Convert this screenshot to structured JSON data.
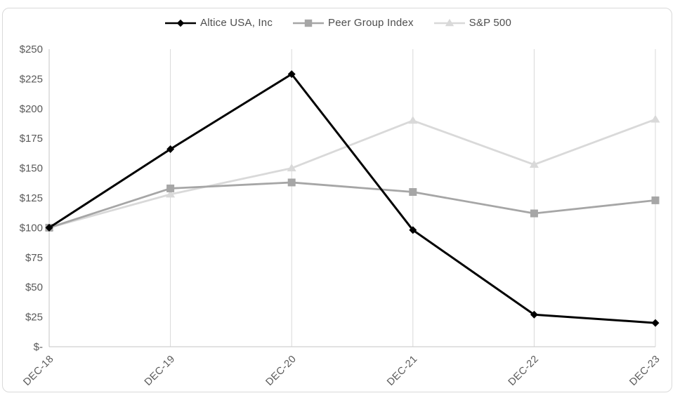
{
  "chart_data": {
    "type": "line",
    "title": "",
    "categories": [
      "DEC-18",
      "DEC-19",
      "DEC-20",
      "DEC-21",
      "DEC-22",
      "DEC-23"
    ],
    "series": [
      {
        "name": "Altice USA, Inc",
        "color": "#000000",
        "marker": "diamond",
        "line_width": 3.0,
        "values": [
          100,
          166,
          229,
          98,
          27,
          20
        ]
      },
      {
        "name": "Peer Group Index",
        "color": "#a6a6a6",
        "marker": "square",
        "line_width": 2.8,
        "values": [
          100,
          133,
          138,
          130,
          112,
          123
        ]
      },
      {
        "name": "S&P 500",
        "color": "#d9d9d9",
        "marker": "triangle",
        "line_width": 2.8,
        "values": [
          100,
          128,
          150,
          190,
          153,
          191
        ]
      }
    ],
    "y_tick_labels_top_to_bottom": [
      "$250",
      "$225",
      "$200",
      "$175",
      "$150",
      "$125",
      "$100",
      "$75",
      "$50",
      "$25",
      "$-"
    ],
    "ylim": [
      0,
      250
    ],
    "y_tick_step": 25,
    "grid": "vertical-only",
    "legend_position": "top-center",
    "colors": {
      "axis_text": "#595959",
      "legend_text": "#4d4d4d",
      "gridline": "#d9d9d9",
      "axis_line": "#c6c6c6",
      "chart_border": "#d9d9d9",
      "background": "#ffffff"
    }
  }
}
